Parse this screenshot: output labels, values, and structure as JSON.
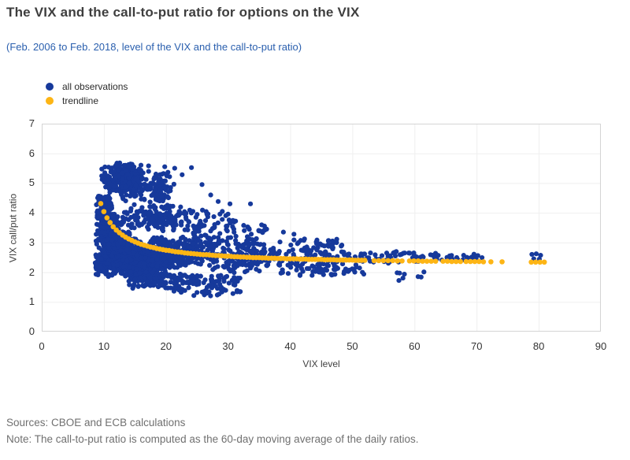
{
  "page": {
    "title": "The VIX and the call-to-put ratio for options on the VIX",
    "subtitle": "(Feb. 2006 to Feb. 2018, level of the VIX and the call-to-put ratio)",
    "source_line": "Sources: CBOE and ECB calculations",
    "note_line": "Note: The call-to-put ratio is computed as the 60-day moving average of the daily ratios.",
    "colors": {
      "title": "#3e3e3e",
      "subtitle": "#2a5fae",
      "footer": "#707070",
      "axis_text": "#333333",
      "grid": "#efefef",
      "plot_border": "#d4d4d4",
      "background": "#ffffff"
    }
  },
  "legend": {
    "items": [
      {
        "label": "all observations",
        "color": "#16399b"
      },
      {
        "label": "trendline",
        "color": "#fdb515"
      }
    ]
  },
  "chart_data": {
    "type": "scatter",
    "xlabel": "VIX level",
    "ylabel": "VIX call/put ratio",
    "xlim": [
      0,
      90
    ],
    "ylim": [
      0,
      7
    ],
    "xticks": [
      0,
      10,
      20,
      30,
      40,
      50,
      60,
      70,
      80,
      90
    ],
    "yticks": [
      0,
      1,
      2,
      3,
      4,
      5,
      6,
      7
    ],
    "grid": true,
    "legend_position": "top-left",
    "series": [
      {
        "name": "all observations",
        "color": "#16399b",
        "marker": "circle",
        "marker_radius": 3.1,
        "dense_regions": [
          {
            "count": 520,
            "x_range": [
              8.6,
              16
            ],
            "y_range": [
              2.0,
              3.4
            ],
            "distribution": "center"
          },
          {
            "count": 260,
            "x_range": [
              8.8,
              13
            ],
            "y_range": [
              2.9,
              4.0
            ],
            "distribution": "center"
          },
          {
            "count": 60,
            "x_range": [
              8.8,
              11.5
            ],
            "y_range": [
              3.8,
              4.35
            ],
            "distribution": "uniform"
          },
          {
            "count": 40,
            "x_range": [
              9.0,
              11.0
            ],
            "y_range": [
              4.25,
              4.6
            ],
            "distribution": "uniform"
          },
          {
            "count": 50,
            "x_range": [
              8.6,
              10.5
            ],
            "y_range": [
              1.9,
              2.6
            ],
            "distribution": "uniform"
          },
          {
            "count": 420,
            "x_range": [
              10,
              21
            ],
            "y_range": [
              1.75,
              2.75
            ],
            "distribution": "center"
          },
          {
            "count": 340,
            "x_range": [
              13,
              24
            ],
            "y_range": [
              2.0,
              3.2
            ],
            "distribution": "center"
          },
          {
            "count": 220,
            "x_range": [
              16,
              30
            ],
            "y_range": [
              2.1,
              3.25
            ],
            "distribution": "center"
          },
          {
            "count": 100,
            "x_range": [
              14,
              23
            ],
            "y_range": [
              1.45,
              2.0
            ],
            "distribution": "uniform"
          },
          {
            "count": 90,
            "x_range": [
              21,
              32
            ],
            "y_range": [
              1.2,
              1.9
            ],
            "distribution": "uniform"
          },
          {
            "count": 160,
            "x_range": [
              12,
              24
            ],
            "y_range": [
              3.35,
              4.3
            ],
            "distribution": "center"
          },
          {
            "count": 50,
            "x_range": [
              22,
              31
            ],
            "y_range": [
              3.3,
              4.1
            ],
            "distribution": "uniform"
          },
          {
            "count": 300,
            "x_range": [
              9.5,
              17.5
            ],
            "y_range": [
              4.55,
              5.75
            ],
            "distribution": "center"
          },
          {
            "count": 45,
            "x_range": [
              13,
              20
            ],
            "y_range": [
              4.35,
              5.2
            ],
            "distribution": "uniform"
          },
          {
            "count": 60,
            "x_range": [
              16.5,
              21.5
            ],
            "y_range": [
              4.15,
              5.45
            ],
            "distribution": "center"
          },
          {
            "count": 150,
            "x_range": [
              27,
              40
            ],
            "y_range": [
              1.9,
              3.1
            ],
            "distribution": "center"
          },
          {
            "count": 70,
            "x_range": [
              38,
              47
            ],
            "y_range": [
              1.85,
              2.75
            ],
            "distribution": "uniform"
          },
          {
            "count": 25,
            "x_range": [
              40,
              47
            ],
            "y_range": [
              2.75,
              3.1
            ],
            "distribution": "uniform"
          },
          {
            "count": 60,
            "x_range": [
              24,
              36
            ],
            "y_range": [
              2.9,
              3.6
            ],
            "distribution": "uniform"
          },
          {
            "count": 40,
            "x_range": [
              44,
              52
            ],
            "y_range": [
              1.9,
              2.3
            ],
            "distribution": "uniform"
          },
          {
            "count": 40,
            "x_range": [
              45,
              53
            ],
            "y_range": [
              2.35,
              2.7
            ],
            "distribution": "uniform"
          },
          {
            "count": 10,
            "x_range": [
              45,
              49
            ],
            "y_range": [
              2.8,
              3.15
            ],
            "distribution": "uniform"
          },
          {
            "count": 26,
            "x_range": [
              53,
              58.5
            ],
            "y_range": [
              2.3,
              2.7
            ],
            "distribution": "uniform"
          },
          {
            "count": 8,
            "x_range": [
              57,
              62
            ],
            "y_range": [
              1.6,
              2.05
            ],
            "distribution": "uniform"
          },
          {
            "count": 22,
            "x_range": [
              59,
              64.5
            ],
            "y_range": [
              2.35,
              2.65
            ],
            "distribution": "uniform"
          },
          {
            "count": 20,
            "x_range": [
              65,
              71
            ],
            "y_range": [
              2.38,
              2.62
            ],
            "distribution": "uniform"
          }
        ],
        "points": [
          [
            19.8,
            5.55
          ],
          [
            21.4,
            5.5
          ],
          [
            24.1,
            5.52
          ],
          [
            22.6,
            5.28
          ],
          [
            25.8,
            4.95
          ],
          [
            27.2,
            4.6
          ],
          [
            28.4,
            4.38
          ],
          [
            30.3,
            4.3
          ],
          [
            33.6,
            4.3
          ],
          [
            31.2,
            3.72
          ],
          [
            32.6,
            3.4
          ],
          [
            36.2,
            3.45
          ],
          [
            38.9,
            3.35
          ],
          [
            40.6,
            3.28
          ],
          [
            42.3,
            3.12
          ],
          [
            44.2,
            3.02
          ],
          [
            46.8,
            3.05
          ],
          [
            48.2,
            2.88
          ],
          [
            78.9,
            2.6
          ],
          [
            79.6,
            2.62
          ],
          [
            80.3,
            2.57
          ],
          [
            79.2,
            2.45
          ],
          [
            80.1,
            2.44
          ]
        ]
      },
      {
        "name": "trendline",
        "color": "#fdb515",
        "marker": "circle",
        "marker_radius": 3.3,
        "points": [
          [
            9.5,
            4.31
          ],
          [
            10,
            4.04
          ],
          [
            10.5,
            3.83
          ],
          [
            11,
            3.67
          ],
          [
            11.5,
            3.53
          ],
          [
            12,
            3.42
          ],
          [
            12.5,
            3.33
          ],
          [
            13,
            3.25
          ],
          [
            13.5,
            3.18
          ],
          [
            14,
            3.12
          ],
          [
            14.5,
            3.07
          ],
          [
            15,
            3.02
          ],
          [
            15.5,
            2.98
          ],
          [
            16,
            2.94
          ],
          [
            16.5,
            2.91
          ],
          [
            17,
            2.88
          ],
          [
            17.5,
            2.85
          ],
          [
            18,
            2.83
          ],
          [
            18.5,
            2.8
          ],
          [
            19,
            2.78
          ],
          [
            19.5,
            2.76
          ],
          [
            20,
            2.74
          ],
          [
            20.5,
            2.73
          ],
          [
            21,
            2.71
          ],
          [
            21.5,
            2.69
          ],
          [
            22,
            2.68
          ],
          [
            22.5,
            2.67
          ],
          [
            23,
            2.65
          ],
          [
            23.5,
            2.64
          ],
          [
            24,
            2.63
          ],
          [
            24.5,
            2.62
          ],
          [
            25,
            2.61
          ],
          [
            25.5,
            2.6
          ],
          [
            26,
            2.59
          ],
          [
            26.5,
            2.59
          ],
          [
            27,
            2.58
          ],
          [
            27.5,
            2.57
          ],
          [
            28,
            2.56
          ],
          [
            28.5,
            2.56
          ],
          [
            29,
            2.55
          ],
          [
            29.5,
            2.54
          ],
          [
            30,
            2.54
          ],
          [
            30.5,
            2.53
          ],
          [
            31,
            2.52
          ],
          [
            31.5,
            2.52
          ],
          [
            32,
            2.51
          ],
          [
            32.5,
            2.51
          ],
          [
            33,
            2.5
          ],
          [
            33.5,
            2.5
          ],
          [
            34,
            2.49
          ],
          [
            34.5,
            2.49
          ],
          [
            35,
            2.49
          ],
          [
            35.5,
            2.48
          ],
          [
            36,
            2.48
          ],
          [
            36.5,
            2.47
          ],
          [
            37,
            2.47
          ],
          [
            37.5,
            2.47
          ],
          [
            38,
            2.46
          ],
          [
            38.5,
            2.46
          ],
          [
            39,
            2.46
          ],
          [
            39.5,
            2.45
          ],
          [
            40,
            2.45
          ],
          [
            40.5,
            2.45
          ],
          [
            41,
            2.45
          ],
          [
            41.5,
            2.44
          ],
          [
            42,
            2.44
          ],
          [
            42.5,
            2.44
          ],
          [
            43,
            2.43
          ],
          [
            43.5,
            2.43
          ],
          [
            44,
            2.43
          ],
          [
            44.5,
            2.43
          ],
          [
            45,
            2.43
          ],
          [
            45.5,
            2.42
          ],
          [
            46,
            2.42
          ],
          [
            46.5,
            2.42
          ],
          [
            47,
            2.42
          ],
          [
            47.5,
            2.41
          ],
          [
            48,
            2.41
          ],
          [
            48.5,
            2.41
          ],
          [
            49,
            2.41
          ],
          [
            49.5,
            2.41
          ],
          [
            50,
            2.41
          ],
          [
            50.5,
            2.4
          ],
          [
            51,
            2.4
          ],
          [
            51.5,
            2.4
          ],
          [
            52,
            2.4
          ],
          [
            53.5,
            2.39
          ],
          [
            54.25,
            2.39
          ],
          [
            55,
            2.39
          ],
          [
            55.75,
            2.39
          ],
          [
            56.5,
            2.39
          ],
          [
            57.25,
            2.38
          ],
          [
            58,
            2.38
          ],
          [
            59.2,
            2.38
          ],
          [
            59.9,
            2.38
          ],
          [
            60.6,
            2.38
          ],
          [
            61.3,
            2.37
          ],
          [
            62,
            2.37
          ],
          [
            62.7,
            2.37
          ],
          [
            63.4,
            2.37
          ],
          [
            64.6,
            2.37
          ],
          [
            65.3,
            2.37
          ],
          [
            66,
            2.36
          ],
          [
            66.7,
            2.36
          ],
          [
            67.4,
            2.36
          ],
          [
            68.3,
            2.36
          ],
          [
            69,
            2.36
          ],
          [
            69.7,
            2.36
          ],
          [
            70.4,
            2.36
          ],
          [
            71.1,
            2.35
          ],
          [
            72.3,
            2.35
          ],
          [
            74.1,
            2.35
          ],
          [
            78.8,
            2.34
          ],
          [
            79.5,
            2.34
          ],
          [
            80.2,
            2.34
          ],
          [
            80.9,
            2.34
          ]
        ]
      }
    ]
  }
}
